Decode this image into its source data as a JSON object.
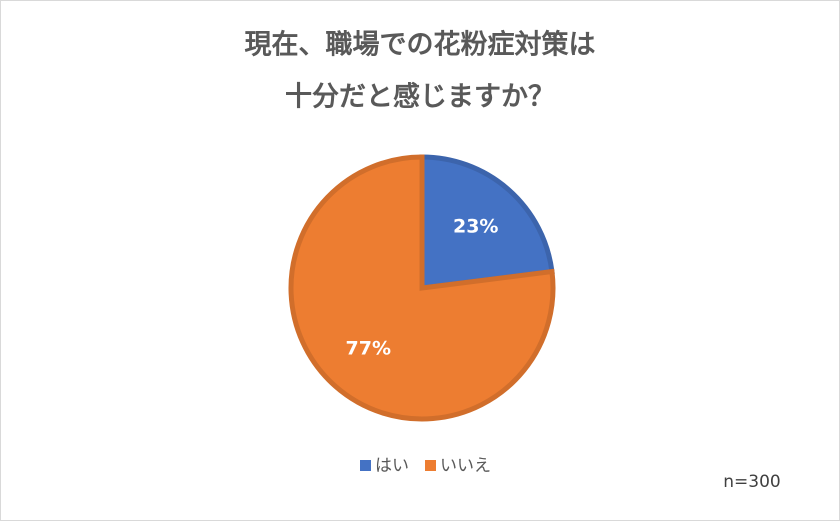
{
  "chart_data": {
    "type": "pie",
    "title": [
      "現在、職場での花粉症対策は",
      "十分だと感じますか？"
    ],
    "categories": [
      "はい",
      "いいえ"
    ],
    "values": [
      23,
      77
    ],
    "value_labels": [
      "23%",
      "77%"
    ],
    "colors": [
      "#4472c4",
      "#ed7d31"
    ],
    "note": "n=300"
  }
}
